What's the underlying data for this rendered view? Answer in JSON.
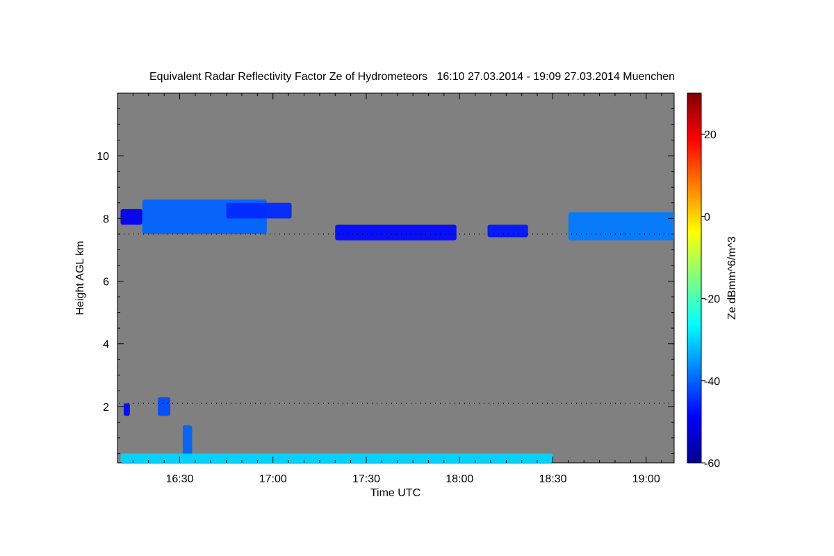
{
  "chart_data": {
    "type": "heatmap",
    "title": "Equivalent Radar Reflectivity Factor Ze of Hydrometeors   16:10 27.03.2014 - 19:09 27.03.2014 Muenchen",
    "xlabel": "Time UTC",
    "ylabel": "Height AGL km",
    "x_range_minutes_after_1610": [
      0,
      179
    ],
    "ylim": [
      0.2,
      12.0
    ],
    "x_ticks": [
      {
        "label": "16:30",
        "minute": 20
      },
      {
        "label": "17:00",
        "minute": 50
      },
      {
        "label": "17:30",
        "minute": 80
      },
      {
        "label": "18:00",
        "minute": 110
      },
      {
        "label": "18:30",
        "minute": 140
      },
      {
        "label": "19:00",
        "minute": 170
      }
    ],
    "y_ticks": [
      {
        "label": "2",
        "value": 2
      },
      {
        "label": "4",
        "value": 4
      },
      {
        "label": "6",
        "value": 6
      },
      {
        "label": "8",
        "value": 8
      },
      {
        "label": "10",
        "value": 10
      }
    ],
    "colorbar": {
      "label": "Ze dBmm^6/m^3",
      "range": [
        -60,
        30
      ],
      "ticks": [
        {
          "label": "-60",
          "value": -60
        },
        {
          "label": "-40",
          "value": -40
        },
        {
          "label": "-20",
          "value": -20
        },
        {
          "label": "0",
          "value": 0
        },
        {
          "label": "20",
          "value": 20
        }
      ],
      "colormap": "jet"
    },
    "echo_regions": [
      {
        "name": "cirrus-fallstreak-1",
        "t_start": 8,
        "t_end": 48,
        "h_bottom": 7.5,
        "h_top": 8.6,
        "ze": -40
      },
      {
        "name": "cirrus-small-cells",
        "t_start": 35,
        "t_end": 56,
        "h_bottom": 8.0,
        "h_top": 8.5,
        "ze": -45
      },
      {
        "name": "cirrus-left-edge",
        "t_start": 1,
        "t_end": 8,
        "h_bottom": 7.8,
        "h_top": 8.3,
        "ze": -50
      },
      {
        "name": "cirrus-mid-band",
        "t_start": 70,
        "t_end": 109,
        "h_bottom": 7.3,
        "h_top": 7.8,
        "ze": -48
      },
      {
        "name": "cirrus-band-1815",
        "t_start": 119,
        "t_end": 132,
        "h_bottom": 7.4,
        "h_top": 7.8,
        "ze": -47
      },
      {
        "name": "cirrus-thick-end",
        "t_start": 145,
        "t_end": 179,
        "h_bottom": 7.3,
        "h_top": 8.2,
        "ze": -38
      },
      {
        "name": "low-cloud-1612",
        "t_start": 2,
        "t_end": 4,
        "h_bottom": 1.7,
        "h_top": 2.1,
        "ze": -48
      },
      {
        "name": "low-cloud-1624",
        "t_start": 13,
        "t_end": 17,
        "h_bottom": 1.7,
        "h_top": 2.3,
        "ze": -42
      },
      {
        "name": "low-streak-1633",
        "t_start": 21,
        "t_end": 24,
        "h_bottom": 0.4,
        "h_top": 1.4,
        "ze": -40
      },
      {
        "name": "surface-clutter",
        "t_start": 1,
        "t_end": 140,
        "h_bottom": 0.2,
        "h_top": 0.5,
        "ze": -30
      }
    ],
    "cloud_base_markers": [
      {
        "name": "ceilometer-upper",
        "h_approx": 7.5
      },
      {
        "name": "ceilometer-lower",
        "h_approx": 2.1
      }
    ]
  }
}
